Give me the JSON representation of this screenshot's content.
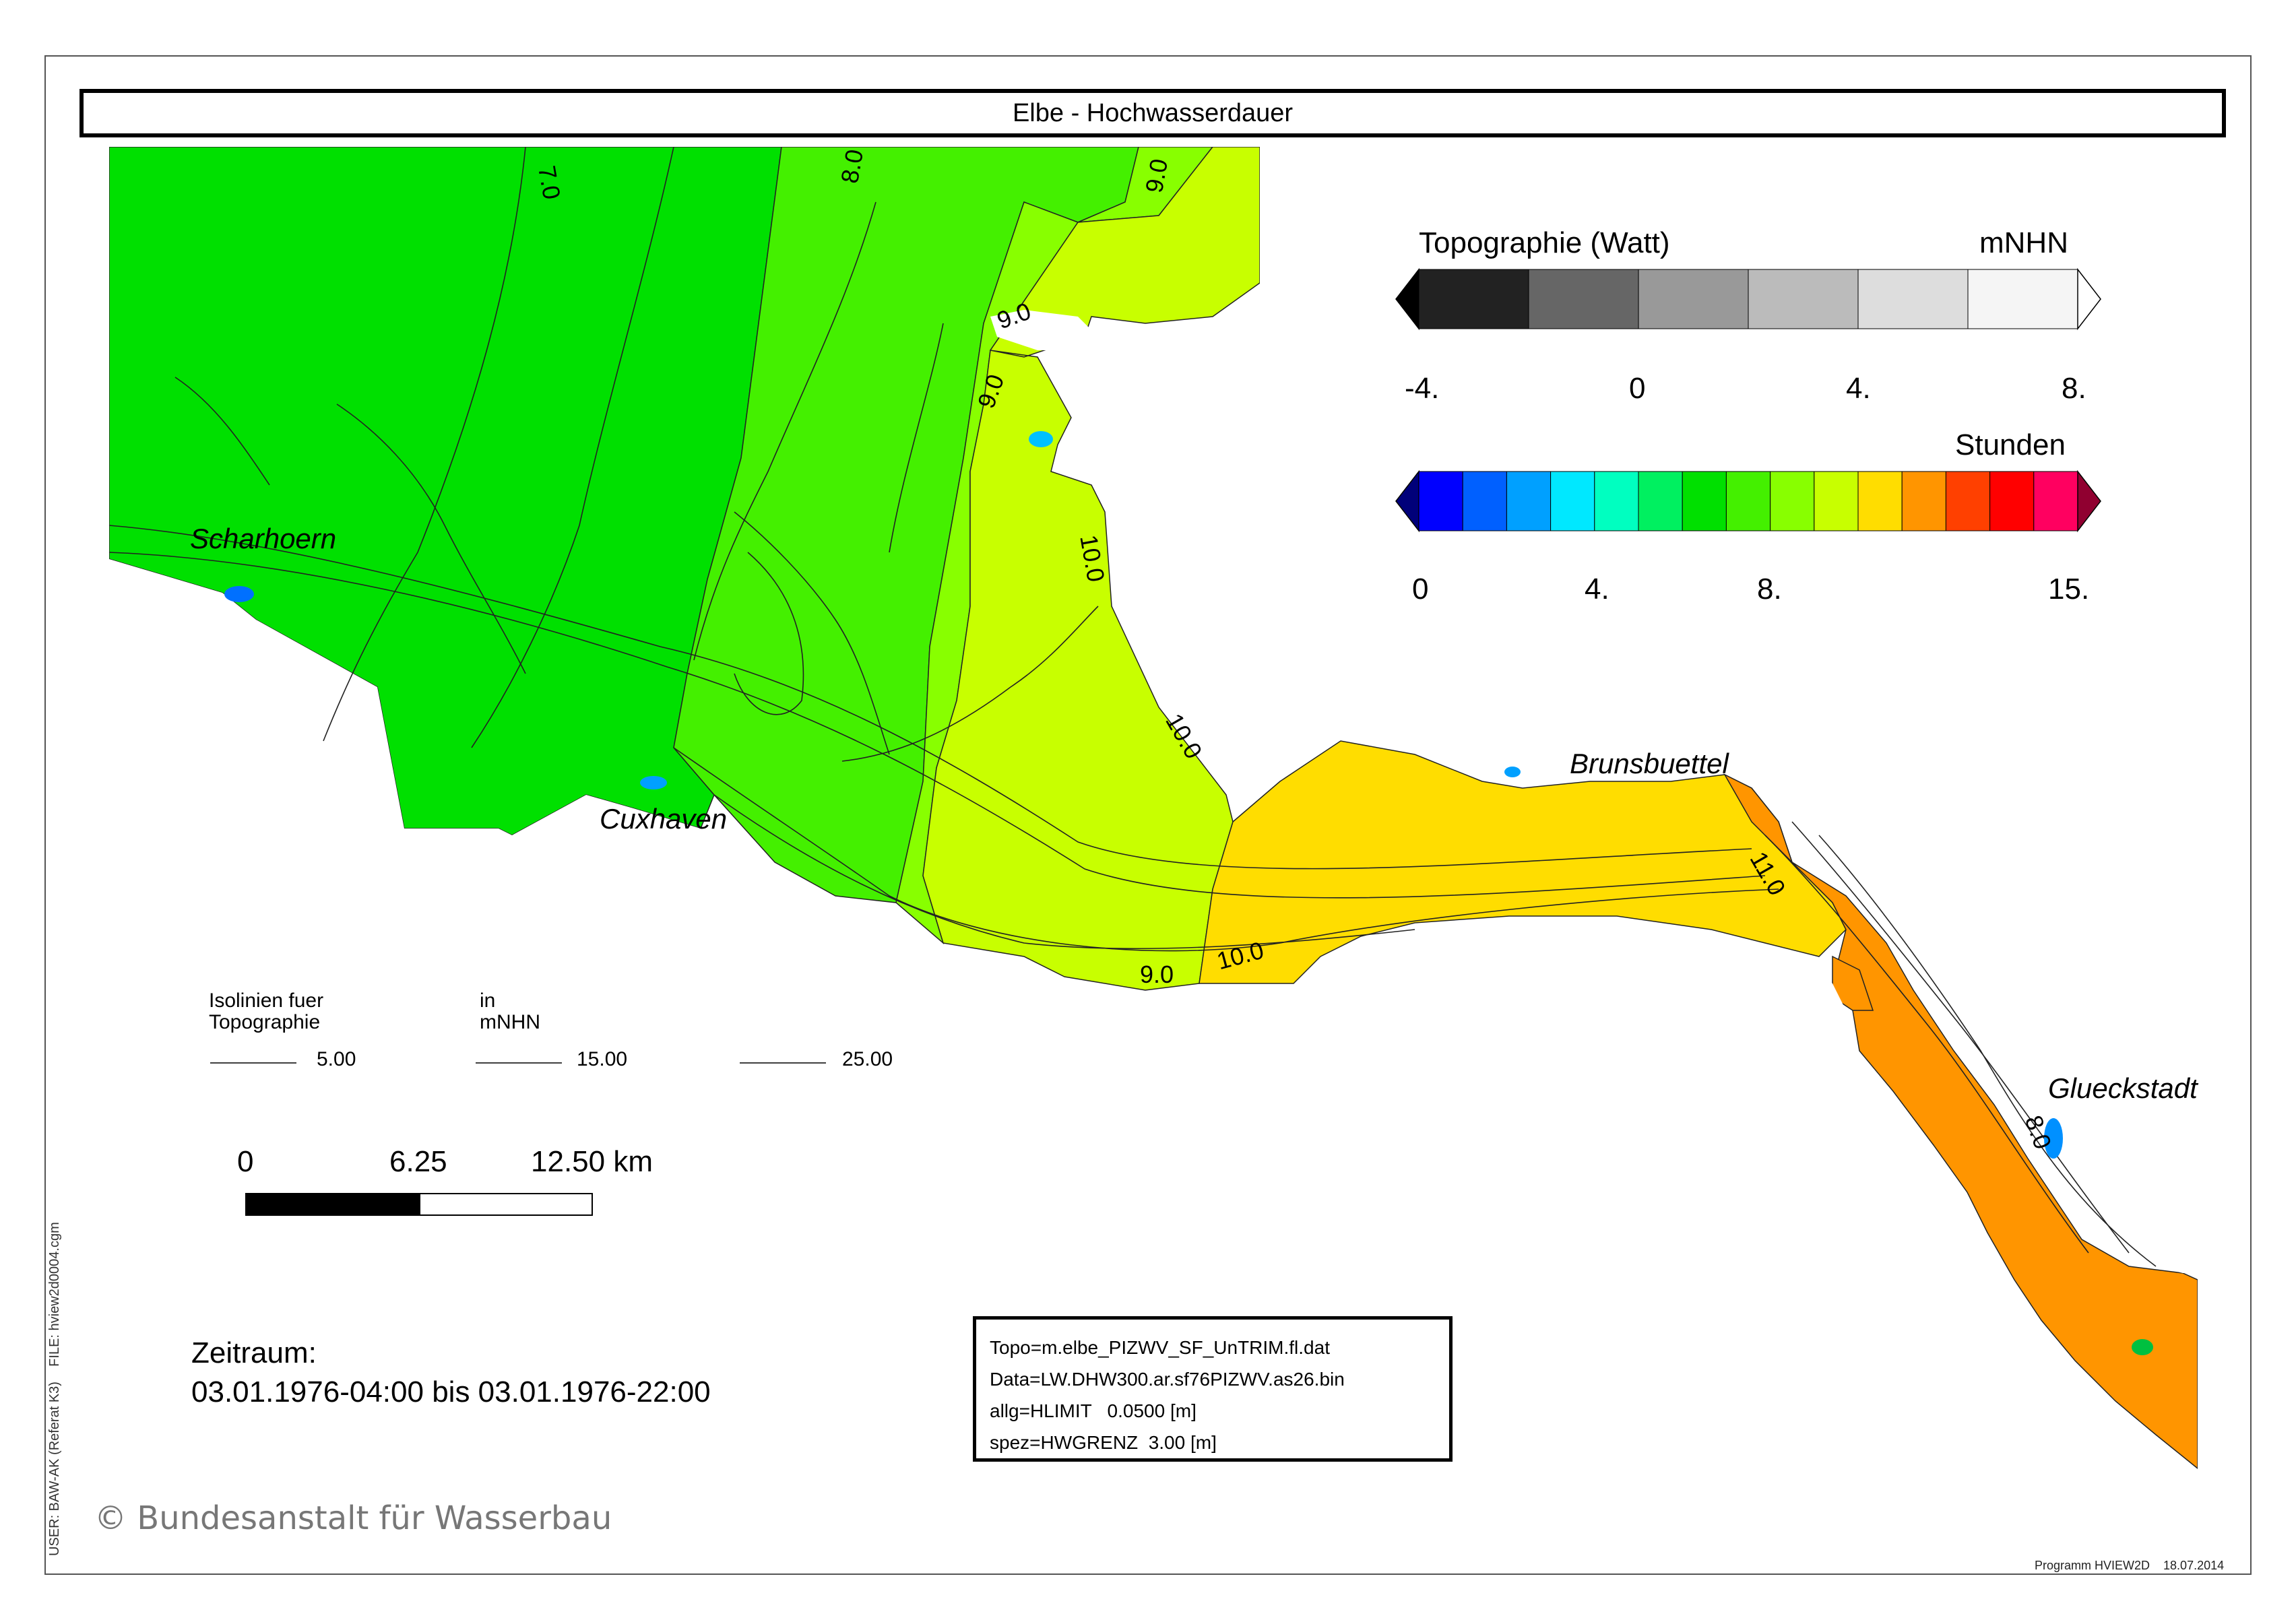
{
  "title": "Elbe - Hochwasserdauer",
  "topo_legend": {
    "title": "Topographie (Watt)",
    "unit": "mNHN",
    "ticks": [
      "-4.",
      "0",
      "4.",
      "8."
    ],
    "colors": [
      "#000000",
      "#222222",
      "#666666",
      "#999999",
      "#bbbbbb",
      "#dddddd",
      "#f5f5f5",
      "#ffffff"
    ]
  },
  "duration_legend": {
    "title": "Stunden",
    "ticks": [
      "0",
      "4.",
      "8.",
      "15."
    ],
    "colors": [
      "#00007a",
      "#0000ff",
      "#0060ff",
      "#00a0ff",
      "#00e8ff",
      "#00ffc0",
      "#00f060",
      "#00e000",
      "#44f000",
      "#88ff00",
      "#c8ff00",
      "#ffdd00",
      "#ff9500",
      "#ff4000",
      "#ff0000",
      "#ff0060",
      "#900030"
    ]
  },
  "isolines": {
    "label_line1": "Isolinien fuer",
    "label_line2": "Topographie",
    "unit_line1": "in",
    "unit_line2": "mNHN",
    "values": [
      "5.00",
      "15.00",
      "25.00"
    ]
  },
  "scale_bar": {
    "labels": [
      "0",
      "6.25",
      "12.50 km"
    ]
  },
  "period": {
    "label": "Zeitraum:",
    "range": "03.01.1976-04:00 bis 03.01.1976-22:00"
  },
  "info": {
    "topo": "Topo=m.elbe_PIZWV_SF_UnTRIM.fl.dat",
    "data": "Data=LW.DHW300.ar.sf76PIZWV.as26.bin",
    "allg": "allg=HLIMIT   0.0500 [m]",
    "spez": "spez=HWGRENZ  3.00 [m]"
  },
  "copyright": "© Bundesanstalt für Wasserbau",
  "side_text": "USER: BAW-AK (Referat K3)    FILE: hview2d0004.cgm",
  "program": "Programm HVIEW2D    18.07.2014",
  "cities": [
    "Scharhoern",
    "Cuxhaven",
    "Brunsbuettel",
    "Glueckstadt"
  ],
  "contour_labels": [
    "7.0",
    "8.0",
    "9.0",
    "9.0",
    "9.0",
    "10.0",
    "10.0",
    "10.0",
    "9.0",
    "11.0",
    "8.0"
  ],
  "zone_colors": {
    "green7": "#00e000",
    "green8": "#44f000",
    "lime9": "#88ff00",
    "yellowgreen10": "#c8ff00",
    "yellow11": "#ffdd00",
    "orange12": "#ff9500"
  }
}
